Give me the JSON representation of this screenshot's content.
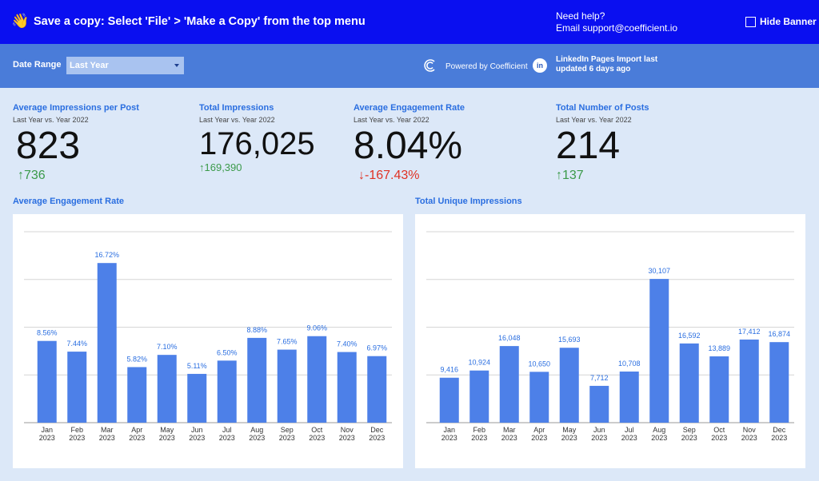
{
  "banner": {
    "icon": "waving-hand-icon",
    "message": "Save a copy: Select 'File' > 'Make a Copy' from the top menu",
    "help_line1": "Need help?",
    "help_line2": "Email support@coefficient.io",
    "hide_label": "Hide Banner",
    "background": "#0a0ff0"
  },
  "filters": {
    "date_range_label": "Date Range",
    "date_range_value": "Last Year",
    "powered_by": "Powered by Coefficient",
    "linkedin_icon_text": "in",
    "import_status_line1": "LinkedIn Pages Import last",
    "import_status_line2": "updated 6 days ago"
  },
  "kpis": [
    {
      "title": "Average Impressions per Post",
      "subtitle": "Last Year vs. Year 2022",
      "value": "823",
      "delta": "↑736",
      "direction": "up"
    },
    {
      "title": "Total Impressions",
      "subtitle": "Last Year vs. Year 2022",
      "value": "176,025",
      "delta": "↑169,390",
      "direction": "up"
    },
    {
      "title": "Average Engagement Rate",
      "subtitle": "Last Year vs. Year 2022",
      "value": "8.04%",
      "delta": "↓-167.43%",
      "direction": "down"
    },
    {
      "title": "Total Number of Posts",
      "subtitle": "Last Year vs. Year 2022",
      "value": "214",
      "delta": "↑137",
      "direction": "up"
    }
  ],
  "colors": {
    "accent": "#2a6ee0",
    "bar": "#4d80e8",
    "up": "#3b9a4a",
    "down": "#e03224"
  },
  "chart_data": [
    {
      "type": "bar",
      "title": "Average Engagement Rate",
      "categories": [
        "Jan 2023",
        "Feb 2023",
        "Mar 2023",
        "Apr 2023",
        "May 2023",
        "Jun 2023",
        "Jul 2023",
        "Aug 2023",
        "Sep 2023",
        "Oct 2023",
        "Nov 2023",
        "Dec 2023"
      ],
      "values": [
        8.56,
        7.44,
        16.72,
        5.82,
        7.1,
        5.11,
        6.5,
        8.88,
        7.65,
        9.06,
        7.4,
        6.97
      ],
      "data_labels": [
        "8.56%",
        "7.44%",
        "16.72%",
        "5.82%",
        "7.10%",
        "5.11%",
        "6.50%",
        "8.88%",
        "7.65%",
        "9.06%",
        "7.40%",
        "6.97%"
      ],
      "ylim": [
        0,
        20
      ],
      "grid": true
    },
    {
      "type": "bar",
      "title": "Total Unique Impressions",
      "categories": [
        "Jan 2023",
        "Feb 2023",
        "Mar 2023",
        "Apr 2023",
        "May 2023",
        "Jun 2023",
        "Jul 2023",
        "Aug 2023",
        "Sep 2023",
        "Oct 2023",
        "Nov 2023",
        "Dec 2023"
      ],
      "values": [
        9416,
        10924,
        16048,
        10650,
        15693,
        7712,
        10708,
        30107,
        16592,
        13889,
        17412,
        16874
      ],
      "data_labels": [
        "9,416",
        "10,924",
        "16,048",
        "10,650",
        "15,693",
        "7,712",
        "10,708",
        "30,107",
        "16,592",
        "13,889",
        "17,412",
        "16,874"
      ],
      "ylim": [
        0,
        40000
      ],
      "grid": true
    }
  ]
}
